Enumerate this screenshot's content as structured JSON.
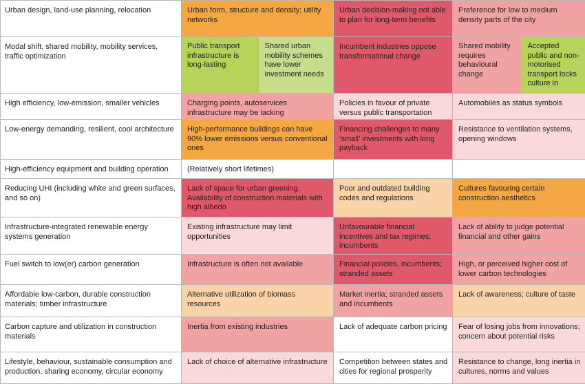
{
  "table": {
    "rows": [
      {
        "label": "Urban design, land-use planning, relocation",
        "cells": [
          {
            "text": "Urban form, structure and density; utility networks",
            "color": "#f4a742"
          },
          {
            "text": "Urban decision-making not able to plan for long-term benefits",
            "color": "#e0596a"
          },
          {
            "text": "Preference for low to medium density parts of the city",
            "color": "#f1a3a3"
          }
        ]
      },
      {
        "label": "Modal shift, shared mobility, mobility services, traffic optimization",
        "cells": [
          {
            "split": [
              {
                "text": "Public transport infrastructure is long-lasting",
                "color": "#b7d35a"
              },
              {
                "text": "Shared urban mobility schemes have lower investment needs",
                "color": "#c8dd8c"
              }
            ]
          },
          {
            "text": "Incumbent industries oppose transformational change",
            "color": "#e0596a"
          },
          {
            "split": [
              {
                "text": "Shared mobility requires behavioural change",
                "color": "#f1a3a3"
              },
              {
                "text": "Accepted public and non-motorised transport locks culture in",
                "color": "#b7d35a"
              }
            ]
          }
        ]
      },
      {
        "label": "High efficiency, low-emission, smaller vehicles",
        "cells": [
          {
            "text": "Charging points, autoservices infrastructure may be lacking",
            "color": "#f1a3a3"
          },
          {
            "text": "Policies in favour of private versus public transportation",
            "color": "#f9d9d9"
          },
          {
            "text": "Automobiles as status symbols",
            "color": "#f9d9d9"
          }
        ]
      },
      {
        "label": "Low-energy demanding, resilient, cool architecture",
        "cells": [
          {
            "text": "High-performance buildings can have 90% lower emissions versus conventional ones",
            "color": "#f4a742"
          },
          {
            "text": "Financing challenges to many ‘small’ investments with long payback",
            "color": "#e0596a"
          },
          {
            "text": "Resistance to ventilation systems, opening windows",
            "color": "#f9d9d9"
          }
        ]
      },
      {
        "label": "High-efficiency equipment and building operation",
        "cells": [
          {
            "text": "(Relatively short lifetimes)",
            "color": "#ffffff"
          },
          {
            "color": "#ffffff"
          },
          {
            "color": "#ffffff"
          }
        ]
      },
      {
        "label": "Reducing UHI (including white and green surfaces, and so on)",
        "cells": [
          {
            "text": "Lack of space for urban greening. Availability of construction materials with high albedo",
            "color": "#e0596a"
          },
          {
            "text": "Poor and outdated building codes and regulations",
            "color": "#fad3a8"
          },
          {
            "text": "Cultures favouring certain construction aesthetics",
            "color": "#f4a742"
          }
        ]
      },
      {
        "label": "Infrastructure-integrated renewable energy systems generation",
        "cells": [
          {
            "text": "Existing infrastructure may limit opportunities",
            "color": "#f9d9d9"
          },
          {
            "text": "Unfavourable financial incentives and tax regimes; incumbents",
            "color": "#e0596a"
          },
          {
            "text": "Lack of ability to judge potential financial and other gains",
            "color": "#f1a3a3"
          }
        ]
      },
      {
        "label": "Fuel switch to low(er) carbon generation",
        "cells": [
          {
            "text": "Infrastructure is often not available",
            "color": "#f1a3a3"
          },
          {
            "text": "Financial policies, incumbents; stranded assets",
            "color": "#e0596a"
          },
          {
            "text": "High, or perceived higher cost of lower carbon technologies",
            "color": "#f1a3a3"
          }
        ]
      },
      {
        "label": "Affordable low-carbon, durable construction materials; timber infrastructure",
        "cells": [
          {
            "text": "Alternative utilization of biomass resources",
            "color": "#fad3a8"
          },
          {
            "text": "Market inertia; stranded assets and incumbents",
            "color": "#f1a3a3"
          },
          {
            "text": "Lack of awareness; culture of taste",
            "color": "#fad3a8"
          }
        ]
      },
      {
        "label": "Carbon capture and utilization in construction materials",
        "cells": [
          {
            "text": "Inertia from existing industries",
            "color": "#f1a3a3"
          },
          {
            "text": "Lack of adequate carbon pricing",
            "color": "#ffffff"
          },
          {
            "text": "Fear of losing jobs from innovations; concern about potential risks",
            "color": "#f9d9d9"
          }
        ]
      },
      {
        "label": "Lifestyle, behaviour, sustainable consumption and production, sharing economy, circular economy",
        "cells": [
          {
            "text": "Lack of choice of alternative infrastructure",
            "color": "#f9d9d9"
          },
          {
            "text": "Competition between states and cities for regional prosperity",
            "color": "#ffffff"
          },
          {
            "text": "Resistance to change, long inertia in cultures, norms and values",
            "color": "#f9d9d9"
          }
        ]
      }
    ]
  }
}
